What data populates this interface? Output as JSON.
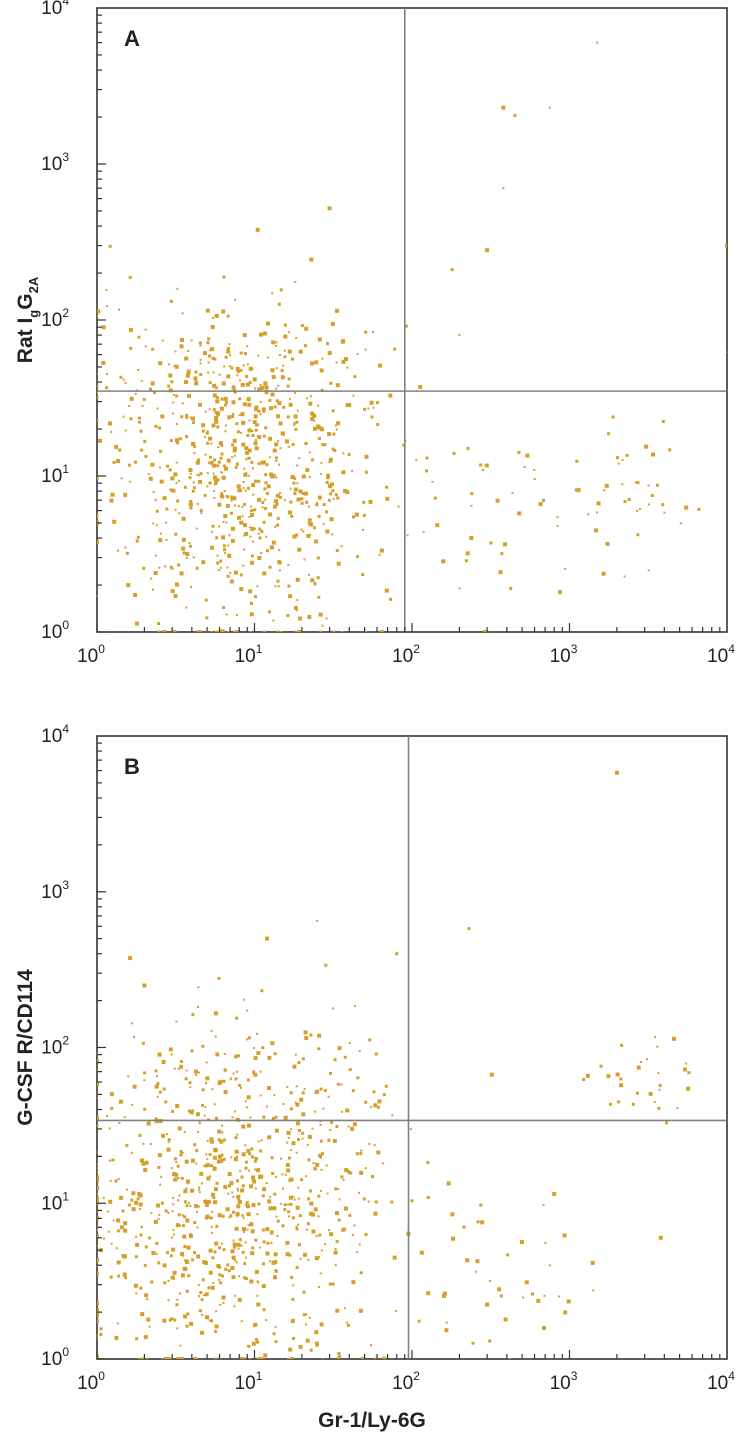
{
  "chart_data": [
    {
      "type": "scatter",
      "panel_label": "A",
      "xlabel": "",
      "ylabel": "Rat IgG2A",
      "ylabel_parts": [
        "Rat I",
        "g",
        "G",
        "2A"
      ],
      "x_scale": "log",
      "y_scale": "log",
      "xlim": [
        1,
        10000
      ],
      "ylim": [
        1,
        10000
      ],
      "x_ticks": [
        1,
        10,
        100,
        1000,
        10000
      ],
      "y_ticks": [
        1,
        10,
        100,
        1000,
        10000
      ],
      "tick_base": "10",
      "tick_exponents": [
        "0",
        "1",
        "2",
        "3",
        "4"
      ],
      "quadrant_gate": {
        "x": 90,
        "y": 35
      },
      "point_color": "#d4a02b",
      "line_color": "#808080",
      "grid": false,
      "clusters": [
        {
          "cx": 8,
          "cy": 10,
          "sx": 0.45,
          "sy": 0.5,
          "n": 700
        },
        {
          "cx": 6,
          "cy": 50,
          "sx": 0.45,
          "sy": 0.22,
          "n": 120
        },
        {
          "cx": 500,
          "cy": 5,
          "sx": 0.45,
          "sy": 0.3,
          "n": 40
        },
        {
          "cx": 2500,
          "cy": 8,
          "sx": 0.2,
          "sy": 0.25,
          "n": 35
        }
      ],
      "points": [
        {
          "x": 1500,
          "y": 6000
        },
        {
          "x": 380,
          "y": 2300
        },
        {
          "x": 450,
          "y": 2050
        },
        {
          "x": 750,
          "y": 2300
        },
        {
          "x": 380,
          "y": 700
        },
        {
          "x": 300,
          "y": 280
        },
        {
          "x": 180,
          "y": 210
        },
        {
          "x": 10000,
          "y": 300
        },
        {
          "x": 10000,
          "y": 62
        },
        {
          "x": 30,
          "y": 520
        },
        {
          "x": 200,
          "y": 80
        }
      ]
    },
    {
      "type": "scatter",
      "panel_label": "B",
      "xlabel": "Gr-1/Ly-6G",
      "ylabel": "G-CSF R/CD114",
      "x_scale": "log",
      "y_scale": "log",
      "xlim": [
        1,
        10000
      ],
      "ylim": [
        1,
        10000
      ],
      "x_ticks": [
        1,
        10,
        100,
        1000,
        10000
      ],
      "y_ticks": [
        1,
        10,
        100,
        1000,
        10000
      ],
      "tick_base": "10",
      "tick_exponents": [
        "0",
        "1",
        "2",
        "3",
        "4"
      ],
      "quadrant_gate": {
        "x": 95,
        "y": 34
      },
      "point_color": "#d4a02b",
      "line_color": "#808080",
      "grid": false,
      "clusters": [
        {
          "cx": 7,
          "cy": 8,
          "sx": 0.5,
          "sy": 0.5,
          "n": 750
        },
        {
          "cx": 8,
          "cy": 55,
          "sx": 0.45,
          "sy": 0.25,
          "n": 130
        },
        {
          "cx": 400,
          "cy": 4,
          "sx": 0.35,
          "sy": 0.3,
          "n": 40
        },
        {
          "cx": 3000,
          "cy": 60,
          "sx": 0.15,
          "sy": 0.15,
          "n": 30
        }
      ],
      "points": [
        {
          "x": 2000,
          "y": 5800
        },
        {
          "x": 230,
          "y": 580
        },
        {
          "x": 25,
          "y": 650
        },
        {
          "x": 12,
          "y": 500
        },
        {
          "x": 10500,
          "y": 440
        },
        {
          "x": 10500,
          "y": 72
        },
        {
          "x": 10500,
          "y": 44
        },
        {
          "x": 10500,
          "y": 9.5
        },
        {
          "x": 3800,
          "y": 6
        },
        {
          "x": 2,
          "y": 250
        },
        {
          "x": 80,
          "y": 400
        }
      ]
    }
  ]
}
